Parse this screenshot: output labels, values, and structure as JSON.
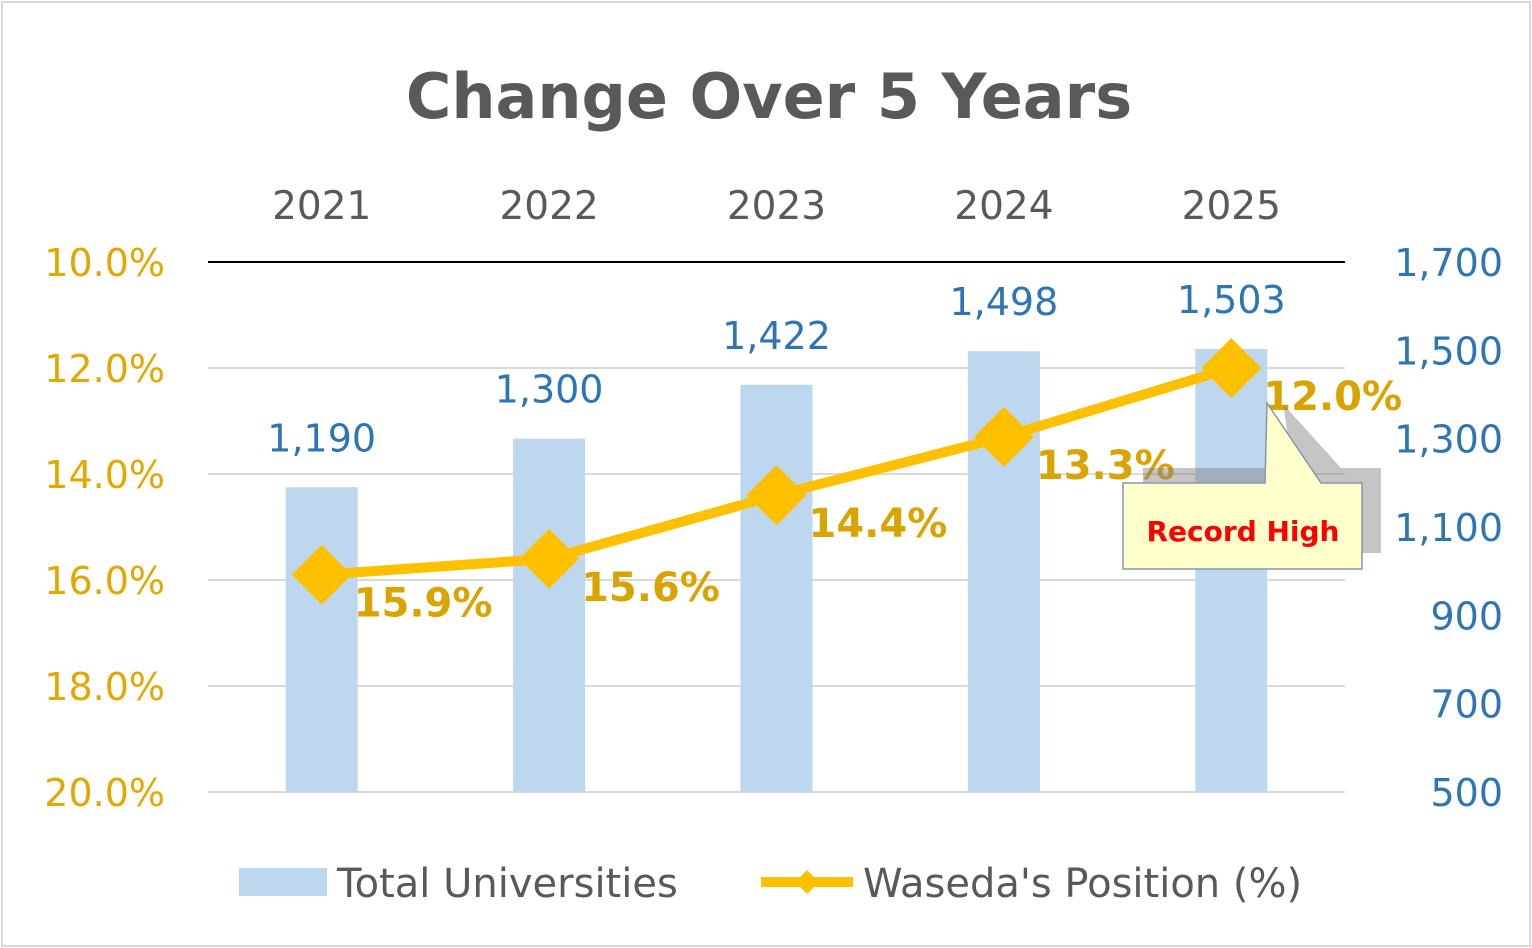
{
  "chart_data": {
    "type": "bar",
    "title": "Change Over 5 Years",
    "categories": [
      "2021",
      "2022",
      "2023",
      "2024",
      "2025"
    ],
    "series": [
      {
        "name": "Total Universities",
        "type": "bar",
        "axis": "right",
        "values": [
          1190,
          1300,
          1422,
          1498,
          1503
        ],
        "labels": [
          "1,190",
          "1,300",
          "1,422",
          "1,498",
          "1,503"
        ],
        "color": "#bdd7ee",
        "label_color": "#2e75b6"
      },
      {
        "name": "Waseda's Position (%)",
        "type": "line",
        "marker": "diamond",
        "axis": "left",
        "values": [
          15.9,
          15.6,
          14.4,
          13.3,
          12.0
        ],
        "labels": [
          "15.9%",
          "15.6%",
          "14.4%",
          "13.3%",
          "12.0%"
        ],
        "color": "#ffc000",
        "label_color": "#d9a300"
      }
    ],
    "left_axis": {
      "min": 10,
      "max": 20,
      "reversed": true,
      "ticks": [
        10,
        12,
        14,
        16,
        18,
        20
      ],
      "tick_labels": [
        "10.0%",
        "12.0%",
        "14.0%",
        "16.0%",
        "18.0%",
        "20.0%"
      ],
      "color": "#e3a800"
    },
    "right_axis": {
      "min": 500,
      "max": 1700,
      "ticks": [
        1700,
        1500,
        1300,
        1100,
        900,
        700,
        500
      ],
      "tick_labels": [
        "1,700",
        "1,500",
        "1,300",
        "1,100",
        "900",
        "700",
        "500"
      ],
      "color": "#2e75b6"
    },
    "category_axis_position": "top",
    "grid": true,
    "legend_position": "bottom",
    "annotation": {
      "text": "Record High",
      "points_to": "2025",
      "text_color": "#ff0000",
      "fill": "#ffffcc"
    }
  }
}
